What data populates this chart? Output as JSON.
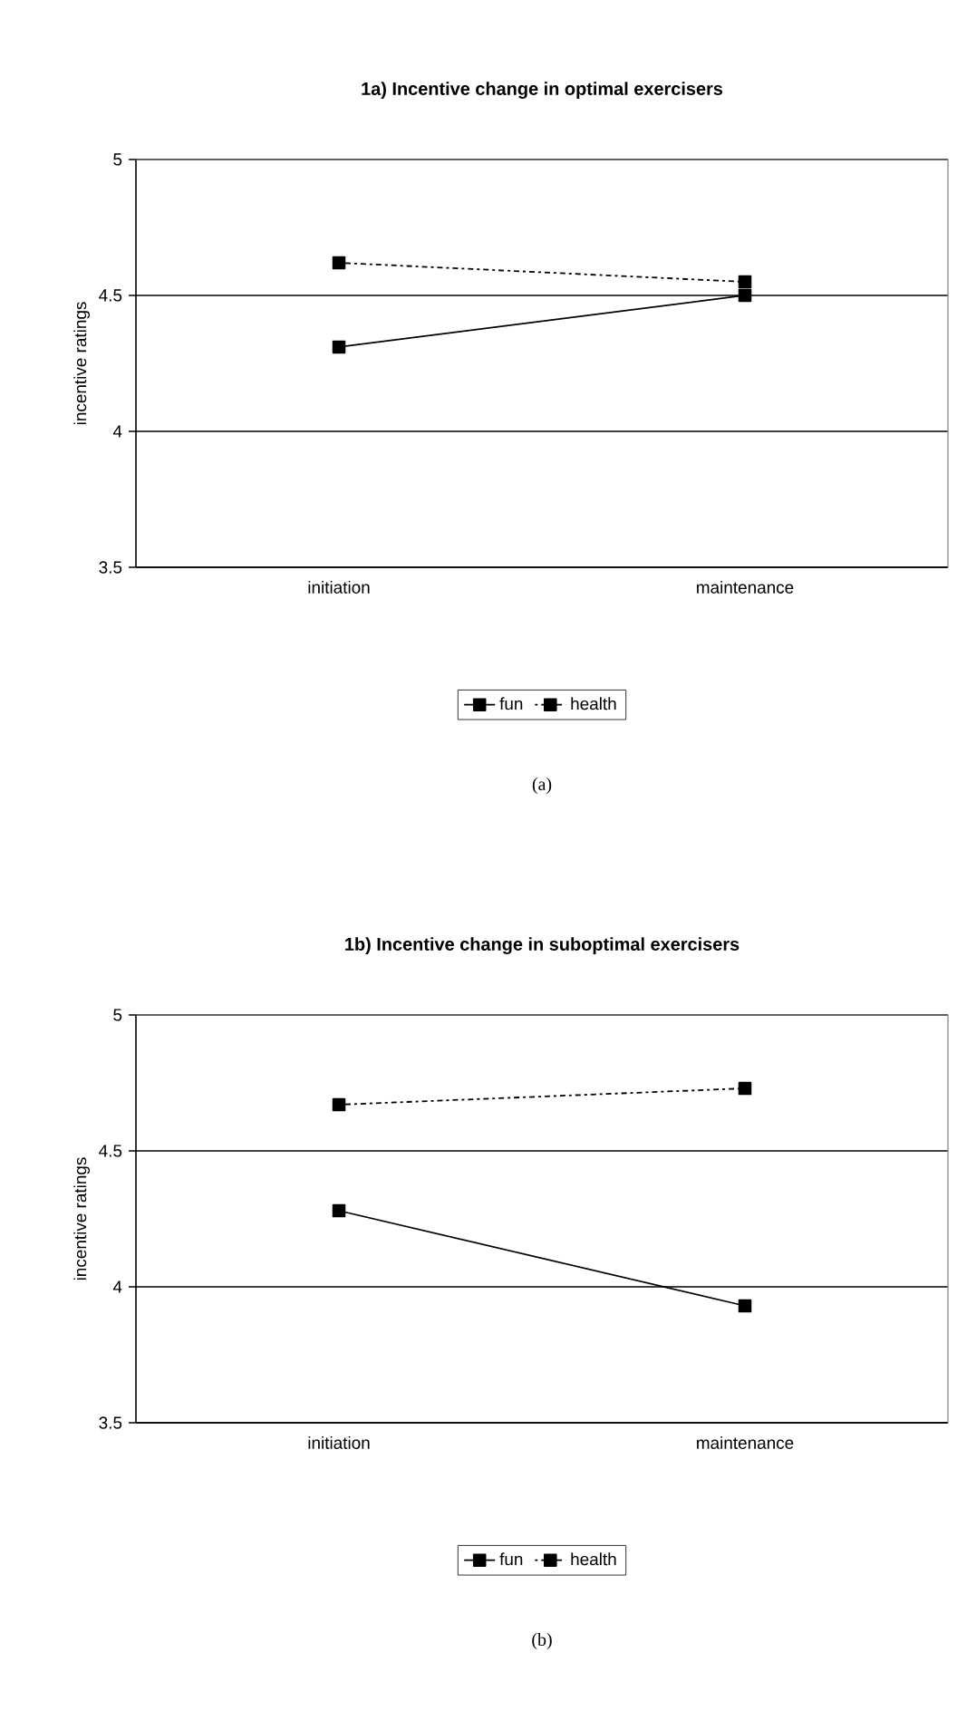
{
  "chart_data": [
    {
      "type": "line",
      "title": "1a) Incentive change in optimal exercisers",
      "ylabel": "incentive ratings",
      "categories": [
        "initiation",
        "maintenance"
      ],
      "series": [
        {
          "name": "fun",
          "color": "#000000",
          "values": [
            4.31,
            4.5
          ],
          "line_style": "solid"
        },
        {
          "name": "health",
          "color": "#000000",
          "values": [
            4.62,
            4.55
          ],
          "line_style": "dotted"
        }
      ],
      "ylim": [
        3.5,
        5
      ],
      "yticks": [
        3.5,
        4,
        4.5,
        5
      ],
      "grid": "y",
      "legend": "bottom",
      "marker": "square",
      "annotations": [
        "(a)"
      ]
    },
    {
      "type": "line",
      "title": "1b) Incentive change in suboptimal exercisers",
      "ylabel": "incentive ratings",
      "categories": [
        "initiation",
        "maintenance"
      ],
      "series": [
        {
          "name": "fun",
          "color": "#000000",
          "values": [
            4.28,
            3.93
          ],
          "line_style": "solid"
        },
        {
          "name": "health",
          "color": "#000000",
          "values": [
            4.67,
            4.73
          ],
          "line_style": "dotted"
        }
      ],
      "ylim": [
        3.5,
        5
      ],
      "yticks": [
        3.5,
        4,
        4.5,
        5
      ],
      "grid": "y",
      "legend": "bottom",
      "marker": "square",
      "annotations": [
        "(b)"
      ]
    }
  ]
}
